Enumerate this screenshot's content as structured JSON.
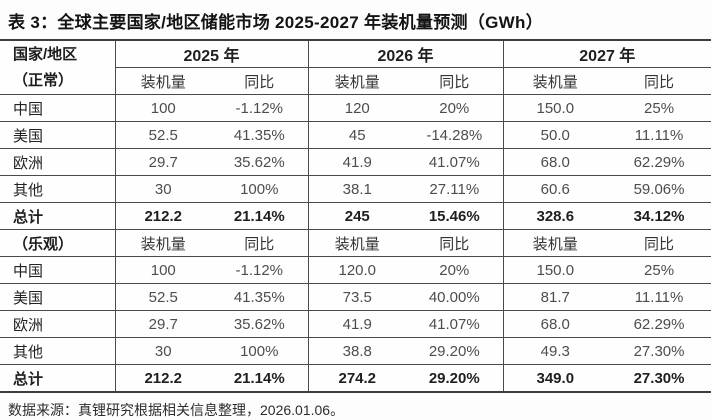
{
  "title": "表 3：全球主要国家/地区储能市场 2025-2027 年装机量预测（GWh）",
  "table": {
    "corner": {
      "line1": "国家/地区",
      "line2": "（正常）"
    },
    "years": [
      "2025 年",
      "2026 年",
      "2027 年"
    ],
    "subheaders": {
      "install": "装机量",
      "yoy": "同比"
    },
    "sections": [
      {
        "name": "normal",
        "rows": [
          {
            "label": "中国",
            "bold": false,
            "cells": [
              "100",
              "-1.12%",
              "120",
              "20%",
              "150.0",
              "25%"
            ]
          },
          {
            "label": "美国",
            "bold": false,
            "cells": [
              "52.5",
              "41.35%",
              "45",
              "-14.28%",
              "50.0",
              "11.11%"
            ]
          },
          {
            "label": "欧洲",
            "bold": false,
            "cells": [
              "29.7",
              "35.62%",
              "41.9",
              "41.07%",
              "68.0",
              "62.29%"
            ]
          },
          {
            "label": "其他",
            "bold": false,
            "cells": [
              "30",
              "100%",
              "38.1",
              "27.11%",
              "60.6",
              "59.06%"
            ]
          },
          {
            "label": "总计",
            "bold": true,
            "cells": [
              "212.2",
              "21.14%",
              "245",
              "15.46%",
              "328.6",
              "34.12%"
            ]
          }
        ]
      },
      {
        "name": "optimistic",
        "header_label": "（乐观）",
        "rows": [
          {
            "label": "中国",
            "bold": false,
            "cells": [
              "100",
              "-1.12%",
              "120.0",
              "20%",
              "150.0",
              "25%"
            ]
          },
          {
            "label": "美国",
            "bold": false,
            "cells": [
              "52.5",
              "41.35%",
              "73.5",
              "40.00%",
              "81.7",
              "11.11%"
            ]
          },
          {
            "label": "欧洲",
            "bold": false,
            "cells": [
              "29.7",
              "35.62%",
              "41.9",
              "41.07%",
              "68.0",
              "62.29%"
            ]
          },
          {
            "label": "其他",
            "bold": false,
            "cells": [
              "30",
              "100%",
              "38.8",
              "29.20%",
              "49.3",
              "27.30%"
            ]
          },
          {
            "label": "总计",
            "bold": true,
            "cells": [
              "212.2",
              "21.14%",
              "274.2",
              "29.20%",
              "349.0",
              "27.30%"
            ]
          }
        ]
      }
    ]
  },
  "footer": "数据来源：真锂研究根据相关信息整理，2026.01.06。",
  "chart_data": {
    "type": "table",
    "title": "表 3：全球主要国家/地区储能市场 2025-2027 年装机量预测（GWh）",
    "columns": [
      "国家/地区",
      "2025 装机量",
      "2025 同比",
      "2026 装机量",
      "2026 同比",
      "2027 装机量",
      "2027 同比"
    ],
    "normal_scenario": [
      [
        "中国",
        "100",
        "-1.12%",
        "120",
        "20%",
        "150.0",
        "25%"
      ],
      [
        "美国",
        "52.5",
        "41.35%",
        "45",
        "-14.28%",
        "50.0",
        "11.11%"
      ],
      [
        "欧洲",
        "29.7",
        "35.62%",
        "41.9",
        "41.07%",
        "68.0",
        "62.29%"
      ],
      [
        "其他",
        "30",
        "100%",
        "38.1",
        "27.11%",
        "60.6",
        "59.06%"
      ],
      [
        "总计",
        "212.2",
        "21.14%",
        "245",
        "15.46%",
        "328.6",
        "34.12%"
      ]
    ],
    "optimistic_scenario": [
      [
        "中国",
        "100",
        "-1.12%",
        "120.0",
        "20%",
        "150.0",
        "25%"
      ],
      [
        "美国",
        "52.5",
        "41.35%",
        "73.5",
        "40.00%",
        "81.7",
        "11.11%"
      ],
      [
        "欧洲",
        "29.7",
        "35.62%",
        "41.9",
        "41.07%",
        "68.0",
        "62.29%"
      ],
      [
        "其他",
        "30",
        "100%",
        "38.8",
        "29.20%",
        "49.3",
        "27.30%"
      ],
      [
        "总计",
        "212.2",
        "21.14%",
        "274.2",
        "29.20%",
        "349.0",
        "27.30%"
      ]
    ],
    "source": "数据来源：真锂研究根据相关信息整理，2026.01.06。"
  }
}
